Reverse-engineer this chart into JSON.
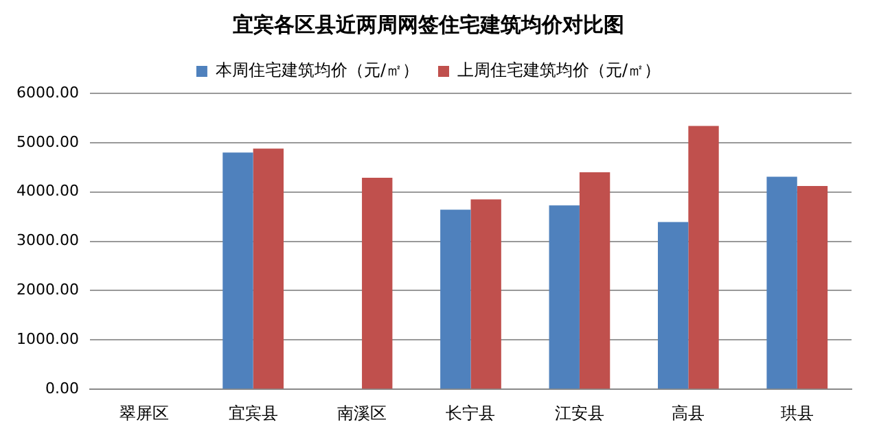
{
  "chart_data": {
    "type": "bar",
    "title": "宜宾各区县近两周网签住宅建筑均价对比图",
    "categories": [
      "翠屏区",
      "宜宾县",
      "南溪区",
      "长宁县",
      "江安县",
      "高县",
      "珙县"
    ],
    "series": [
      {
        "name": "本周住宅建筑均价（元/㎡）",
        "color": "#4f81bd",
        "values": [
          null,
          4800,
          null,
          3640,
          3730,
          3390,
          4310
        ]
      },
      {
        "name": "上周住宅建筑均价（元/㎡）",
        "color": "#c0504d",
        "values": [
          null,
          4880,
          4290,
          3850,
          4400,
          5340,
          4120
        ]
      }
    ],
    "ylim": [
      0,
      6000
    ],
    "yticks": [
      {
        "value": 0,
        "label": "0.00"
      },
      {
        "value": 1000,
        "label": "1000.00"
      },
      {
        "value": 2000,
        "label": "2000.00"
      },
      {
        "value": 3000,
        "label": "3000.00"
      },
      {
        "value": 4000,
        "label": "4000.00"
      },
      {
        "value": 5000,
        "label": "5000.00"
      },
      {
        "value": 6000,
        "label": "6000.00"
      }
    ],
    "grid": "y",
    "legend": "top"
  }
}
